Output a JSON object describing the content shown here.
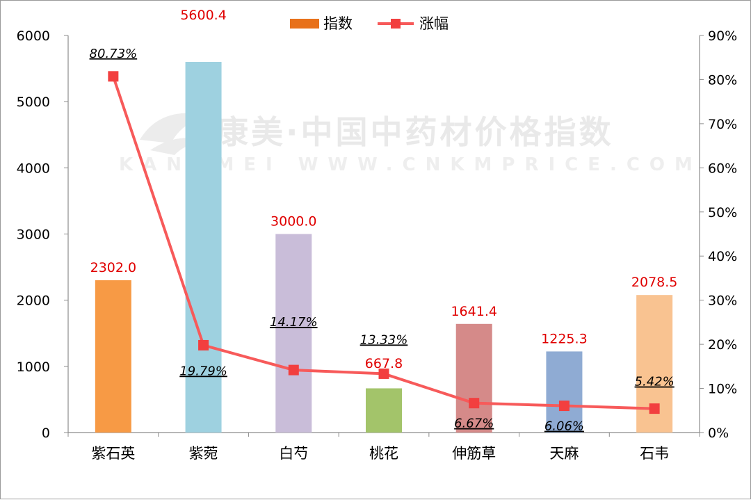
{
  "chart_data": {
    "type": "bar",
    "categories": [
      "紫石英",
      "紫菀",
      "白芍",
      "桃花",
      "伸筋草",
      "天麻",
      "石韦"
    ],
    "series": [
      {
        "name": "指数",
        "axis": "left",
        "type": "bar",
        "values": [
          2302.0,
          5600.4,
          3000.0,
          667.8,
          1641.4,
          1225.3,
          2078.5
        ],
        "value_labels": [
          "2302.0",
          "5600.4",
          "3000.0",
          "667.8",
          "1641.4",
          "1225.3",
          "2078.5"
        ],
        "colors": [
          "#f79a45",
          "#9ed1e0",
          "#c9bdd9",
          "#a3c46a",
          "#d58a89",
          "#8fabd3",
          "#f9c391"
        ],
        "legend_color": "#e8711a"
      },
      {
        "name": "涨幅",
        "axis": "right",
        "type": "line",
        "values": [
          80.73,
          19.79,
          14.17,
          13.33,
          6.67,
          6.06,
          5.42
        ],
        "value_labels": [
          "80.73%",
          "19.79%",
          "14.17%",
          "13.33%",
          "6.67%",
          "6.06%",
          "5.42%"
        ],
        "color": "#f75a5a"
      }
    ],
    "left_axis": {
      "ylim": [
        0,
        6000
      ],
      "ticks": [
        0,
        1000,
        2000,
        3000,
        4000,
        5000,
        6000
      ],
      "tick_labels": [
        "0",
        "1000",
        "2000",
        "3000",
        "4000",
        "5000",
        "6000"
      ]
    },
    "right_axis": {
      "ylim": [
        0,
        90
      ],
      "ticks": [
        0,
        10,
        20,
        30,
        40,
        50,
        60,
        70,
        80,
        90
      ],
      "tick_labels": [
        "0%",
        "10%",
        "20%",
        "30%",
        "40%",
        "50%",
        "60%",
        "70%",
        "80%",
        "90%"
      ]
    },
    "legend": {
      "placement": "top-center"
    },
    "grid": false,
    "watermark": {
      "cn": "康美·中国中药材价格指数",
      "en": "KANGMEI WWW.CNKMPRICE.COM"
    }
  }
}
